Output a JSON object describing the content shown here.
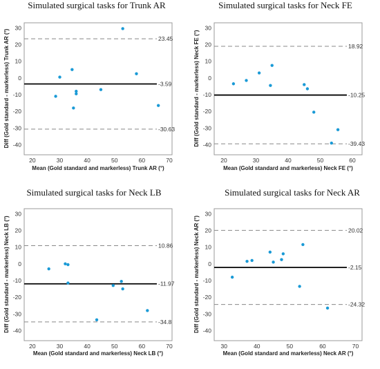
{
  "chart_data": [
    {
      "type": "scatter",
      "title": "Simulated surgical tasks for Trunk AR",
      "xlabel": "Mean (Gold standard and markerless) Trunk AR (°)",
      "ylabel": "Diff (Gold standard - markerless) Trunk AR (°)",
      "xlim": [
        17,
        71
      ],
      "ylim": [
        -46,
        33
      ],
      "xticks": [
        "20",
        "30",
        "40",
        "50",
        "60",
        "70"
      ],
      "yticks": [
        "30",
        "20",
        "10",
        "0",
        "-10",
        "-20",
        "-30",
        "-40"
      ],
      "bias": {
        "value": -3.59,
        "label": "-3.59"
      },
      "upper_loa": {
        "value": 23.45,
        "label": "23.45"
      },
      "lower_loa": {
        "value": -30.63,
        "label": "-30.63"
      },
      "x": [
        28.5,
        30,
        34.5,
        35,
        36,
        36,
        45,
        53,
        58,
        66
      ],
      "y": [
        -11,
        0.5,
        5,
        -18,
        -8,
        -9.5,
        -7,
        29.5,
        2.5,
        -16.5
      ],
      "point_color": "#1a9ad6"
    },
    {
      "type": "scatter",
      "title": "Simulated surgical tasks for Neck FE",
      "xlabel": "Mean (Gold standard and markerless) Neck FE (°)",
      "ylabel": "Diff (Gold standard - markerless) Neck FE (°)",
      "xlim": [
        17,
        63
      ],
      "ylim": [
        -46,
        33
      ],
      "xticks": [
        "20",
        "30",
        "40",
        "50",
        "60"
      ],
      "yticks": [
        "30",
        "20",
        "10",
        "0",
        "-10",
        "-20",
        "-30",
        "-40"
      ],
      "bias": {
        "value": -10.25,
        "label": "-10.25"
      },
      "upper_loa": {
        "value": 18.92,
        "label": "18.92"
      },
      "lower_loa": {
        "value": -39.43,
        "label": "-39.43"
      },
      "x": [
        23,
        27,
        31,
        34.5,
        35,
        45,
        46,
        48,
        53.5,
        55.5
      ],
      "y": [
        -3.5,
        -1.5,
        3,
        -4.5,
        7.5,
        -4,
        -6.5,
        -20.5,
        -39,
        -31
      ],
      "point_color": "#1a9ad6"
    },
    {
      "type": "scatter",
      "title": "Simulated surgical tasks for Neck LB",
      "xlabel": "Mean (Gold standard and markerless) Neck LB (°)",
      "ylabel": "Diff (Gold standard - markerless) Neck LB (°)",
      "xlim": [
        17,
        71
      ],
      "ylim": [
        -46,
        33
      ],
      "xticks": [
        "20",
        "30",
        "40",
        "50",
        "60",
        "70"
      ],
      "yticks": [
        "30",
        "20",
        "10",
        "0",
        "-10",
        "-20",
        "-30",
        "-40"
      ],
      "bias": {
        "value": -11.97,
        "label": "-11.97"
      },
      "upper_loa": {
        "value": 10.86,
        "label": "10.86"
      },
      "lower_loa": {
        "value": -34.8,
        "label": "-34.8"
      },
      "x": [
        26,
        32,
        33,
        33,
        43.5,
        49.5,
        52.5,
        53,
        62
      ],
      "y": [
        -3,
        0,
        -0.5,
        -11.5,
        -33.5,
        -13,
        -10.5,
        -15,
        -28
      ],
      "point_color": "#1a9ad6"
    },
    {
      "type": "scatter",
      "title": "Simulated surgical tasks for Neck AR",
      "xlabel": "Mean (Gold standard and markerless) Neck AR (°)",
      "ylabel": "Diff (Gold standard - markerless) Neck AR (°)",
      "xlim": [
        27,
        72
      ],
      "ylim": [
        -46,
        33
      ],
      "xticks": [
        "30",
        "40",
        "50",
        "60",
        "70"
      ],
      "yticks": [
        "30",
        "20",
        "10",
        "0",
        "-10",
        "-20",
        "-30",
        "-40"
      ],
      "bias": {
        "value": -2.15,
        "label": "-2.15"
      },
      "upper_loa": {
        "value": 20.02,
        "label": "20.02"
      },
      "lower_loa": {
        "value": -24.32,
        "label": "-24.32"
      },
      "x": [
        32.5,
        37,
        38.5,
        44,
        45,
        47.5,
        48,
        53,
        54,
        61.5
      ],
      "y": [
        -8,
        1.5,
        2,
        7,
        1,
        2.5,
        6,
        -13.5,
        11.5,
        -26.5
      ],
      "point_color": "#1a9ad6"
    }
  ]
}
